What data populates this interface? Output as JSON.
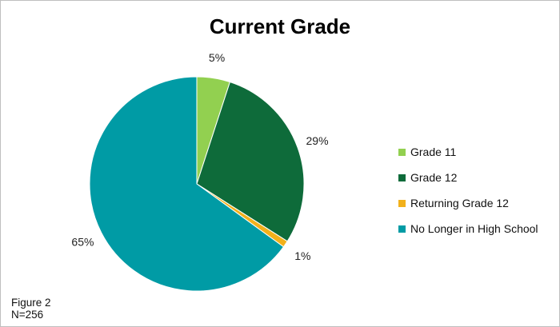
{
  "chart_data": {
    "type": "pie",
    "title": "Current Grade",
    "slices": [
      {
        "name": "Grade 11",
        "value": 5,
        "label": "5%",
        "color": "#92d050"
      },
      {
        "name": "Grade 12",
        "value": 29,
        "label": "29%",
        "color": "#0e6b3a"
      },
      {
        "name": "Returning Grade 12",
        "value": 1,
        "label": "1%",
        "color": "#f2b11b"
      },
      {
        "name": "No Longer in High School",
        "value": 65,
        "label": "65%",
        "color": "#009ba5"
      }
    ],
    "legend_position": "right"
  },
  "footer": {
    "figure": "Figure 2",
    "n": "N=256"
  }
}
